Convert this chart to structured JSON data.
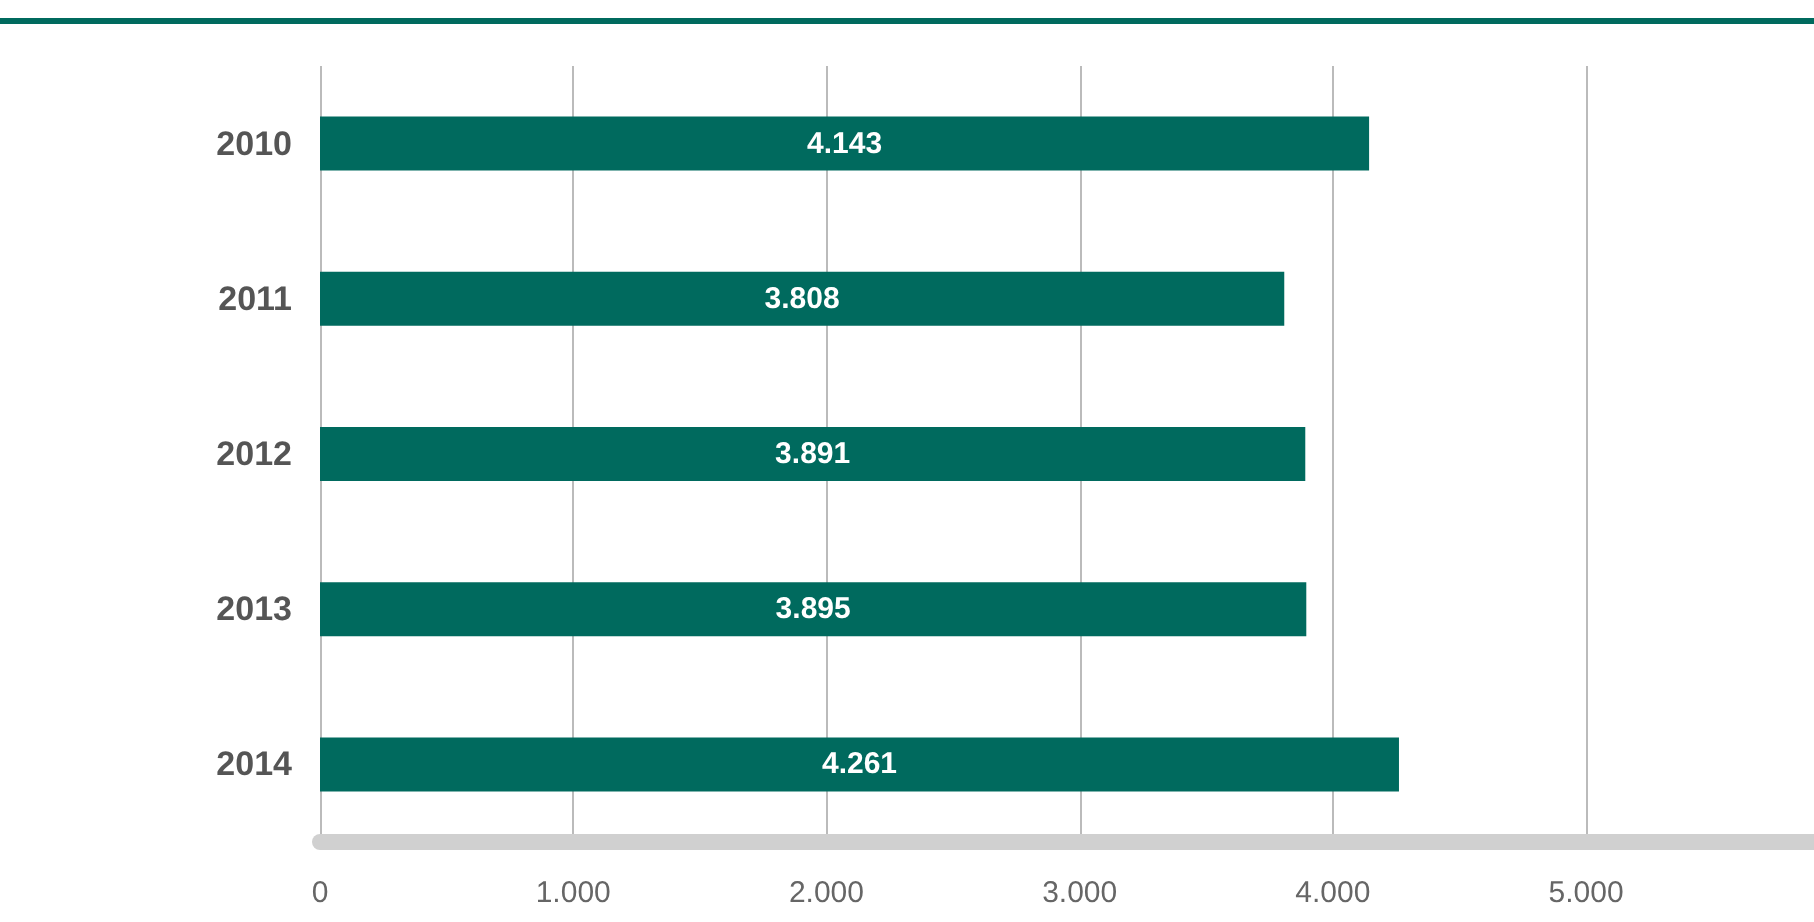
{
  "chart_data": {
    "type": "bar",
    "orientation": "horizontal",
    "categories": [
      "2010",
      "2011",
      "2012",
      "2013",
      "2014"
    ],
    "values": [
      4143,
      3808,
      3891,
      3895,
      4261
    ],
    "value_labels": [
      "4.143",
      "3.808",
      "3.891",
      "3.895",
      "4.261"
    ],
    "color": "#006a5e",
    "xlim": [
      0,
      5900
    ],
    "xticks": [
      {
        "value": 0,
        "label": "0"
      },
      {
        "value": 1000,
        "label": "1.000"
      },
      {
        "value": 2000,
        "label": "2.000"
      },
      {
        "value": 3000,
        "label": "3.000"
      },
      {
        "value": 4000,
        "label": "4.000"
      },
      {
        "value": 5000,
        "label": "5.000"
      }
    ],
    "grid": "x"
  }
}
